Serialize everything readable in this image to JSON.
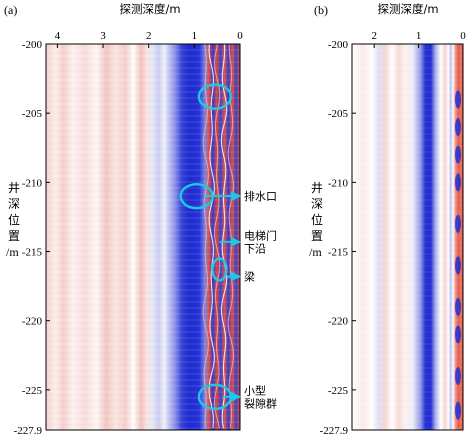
{
  "panels": [
    {
      "label": "(a)",
      "x_axis_label": "探测深度/m",
      "x_ticks": [
        "4",
        "3",
        "2",
        "1",
        "0"
      ],
      "x_tick_values": [
        4,
        3,
        2,
        1,
        0
      ],
      "x_range": [
        4.25,
        0
      ],
      "y_axis_label_chars": [
        "井",
        "深",
        "位",
        "置",
        "/m"
      ],
      "y_ticks": [
        "-200",
        "-205",
        "-210",
        "-215",
        "-220",
        "-225",
        "-227.9"
      ],
      "y_tick_values": [
        -200,
        -205,
        -210,
        -215,
        -220,
        -225,
        -227.9
      ],
      "y_range": [
        -200,
        -227.9
      ],
      "annotations": [
        {
          "id": "drain",
          "label_lines": [
            "排水口"
          ],
          "depth": -211,
          "offset": 0.95
        },
        {
          "id": "elevator",
          "label_lines": [
            "电梯门",
            "下沿"
          ],
          "depth": -214.3,
          "offset": 0.62
        },
        {
          "id": "beam",
          "label_lines": [
            "梁"
          ],
          "depth": -216.8,
          "offset": 0.45
        },
        {
          "id": "cracks",
          "label_lines": [
            "小型",
            "裂隙群"
          ],
          "depth": -225.5,
          "offset": 0.55
        }
      ],
      "circled_anomalies": [
        {
          "depth": -203.8,
          "offset": 0.55
        },
        {
          "depth": -211,
          "offset": 0.95
        },
        {
          "depth": -216.3,
          "offset": 0.45
        },
        {
          "depth": -225.5,
          "offset": 0.55
        }
      ]
    },
    {
      "label": "(b)",
      "x_axis_label": "探测深度/m",
      "x_ticks": [
        "2",
        "1",
        "0"
      ],
      "x_tick_values": [
        2,
        1,
        0
      ],
      "x_range": [
        2.5,
        0
      ],
      "y_axis_label_chars": [
        "井",
        "深",
        "位",
        "置",
        "/m"
      ],
      "y_ticks": [
        "-200",
        "-205",
        "-210",
        "-215",
        "-220",
        "-225",
        "-227.9"
      ],
      "y_tick_values": [
        -200,
        -205,
        -210,
        -215,
        -220,
        -225,
        -227.9
      ],
      "y_range": [
        -200,
        -227.9
      ]
    }
  ],
  "colors": {
    "positive": "#e8554a",
    "negative": "#1f2fd6",
    "annotation": "#1ec8e6",
    "axis": "#000000"
  }
}
